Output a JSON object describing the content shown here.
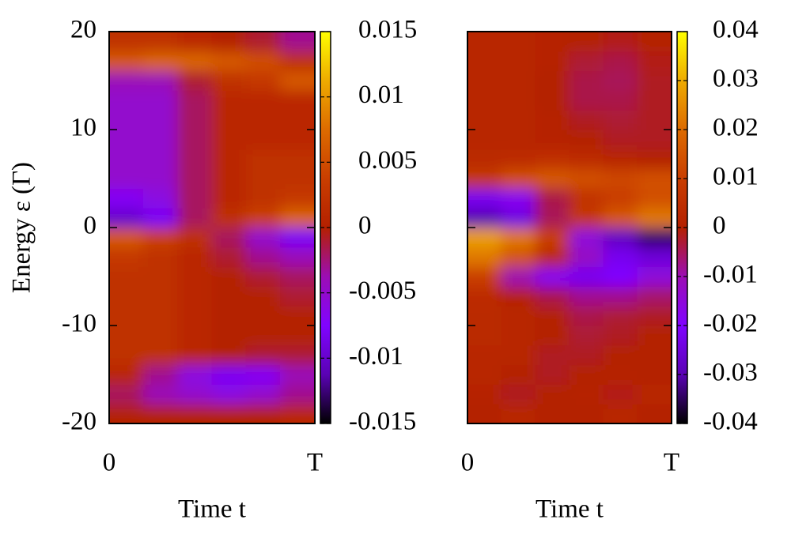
{
  "chart_data": [
    {
      "type": "heatmap",
      "xlabel": "Time t",
      "ylabel": "Energy ε (Γ)",
      "xlim": [
        0,
        1
      ],
      "xticks": [
        0,
        {
          "value": 1,
          "label": "T"
        }
      ],
      "ylim": [
        -20,
        20
      ],
      "yticks": [
        -20,
        -10,
        0,
        10,
        20
      ],
      "x": [
        0.0833,
        0.25,
        0.4167,
        0.5833,
        0.75,
        0.9167
      ],
      "y": [
        -19,
        -17,
        -15,
        -13,
        -11,
        -9,
        -7,
        -5,
        -3,
        -1,
        1,
        3,
        5,
        7,
        9,
        11,
        13,
        15,
        17,
        19
      ],
      "z": [
        [
          0,
          0,
          0,
          0,
          0,
          0.001
        ],
        [
          -0.002,
          -0.004,
          -0.005,
          -0.006,
          -0.005,
          -0.003
        ],
        [
          0.001,
          -0.003,
          -0.006,
          -0.008,
          -0.007,
          -0.004
        ],
        [
          0.002,
          0.002,
          0.001,
          0,
          -0.001,
          -0.001
        ],
        [
          0.002,
          0.002,
          0.001,
          0,
          0,
          0
        ],
        [
          0.002,
          0.002,
          0.001,
          0,
          0,
          0
        ],
        [
          0.002,
          0.002,
          0.001,
          0,
          0,
          -0.001
        ],
        [
          0.002,
          0.002,
          0.001,
          0,
          -0.001,
          -0.002
        ],
        [
          0.003,
          0.002,
          0.001,
          -0.001,
          -0.003,
          -0.004
        ],
        [
          0.006,
          0.004,
          0.002,
          -0.002,
          -0.005,
          -0.008
        ],
        [
          -0.01,
          -0.008,
          -0.002,
          0.002,
          0.004,
          0.007
        ],
        [
          -0.007,
          -0.006,
          -0.002,
          0.001,
          0.002,
          0.003
        ],
        [
          -0.005,
          -0.005,
          -0.002,
          0.001,
          0.002,
          0.002
        ],
        [
          -0.005,
          -0.005,
          -0.002,
          0.001,
          0.002,
          0.002
        ],
        [
          -0.005,
          -0.005,
          -0.002,
          0.001,
          0.001,
          0.001
        ],
        [
          -0.005,
          -0.005,
          -0.002,
          0.001,
          0.001,
          0.001
        ],
        [
          -0.005,
          -0.005,
          -0.002,
          0.001,
          0.001,
          0.001
        ],
        [
          -0.004,
          -0.004,
          -0.001,
          0.002,
          0.003,
          0.006
        ],
        [
          0.006,
          0.007,
          0.007,
          0.006,
          0.005,
          0.002
        ],
        [
          0.002,
          0.002,
          0.001,
          0,
          -0.001,
          -0.003
        ]
      ],
      "clim": [
        -0.015,
        0.015
      ],
      "cticks": [
        -0.015,
        -0.01,
        -0.005,
        0,
        0.005,
        0.01,
        0.015
      ],
      "colormap": [
        "#000000",
        "#5a02b4",
        "#8004ff",
        "#9c0db4",
        "#b42000",
        "#c93e00",
        "#dd6b00",
        "#eeab00",
        "#ffff00"
      ]
    },
    {
      "type": "heatmap",
      "xlabel": "Time t",
      "xlim": [
        0,
        1
      ],
      "xticks": [
        0,
        {
          "value": 1,
          "label": "T"
        }
      ],
      "ylim": [
        -20,
        20
      ],
      "yticks": [
        -20,
        -10,
        0,
        10,
        20
      ],
      "x": [
        0.0833,
        0.25,
        0.4167,
        0.5833,
        0.75,
        0.9167
      ],
      "y": [
        -19,
        -17,
        -15,
        -13,
        -11,
        -9,
        -7,
        -5,
        -3,
        -1,
        1,
        3,
        5,
        7,
        9,
        11,
        13,
        15,
        17,
        19
      ],
      "z": [
        [
          0,
          0.002,
          0,
          0,
          0.002,
          0
        ],
        [
          0.001,
          -0.002,
          0,
          0.001,
          -0.001,
          0.002
        ],
        [
          0.002,
          0,
          -0.002,
          0,
          0.001,
          0
        ],
        [
          0.002,
          0.002,
          -0.002,
          -0.002,
          0,
          0
        ],
        [
          0.003,
          0.002,
          0,
          -0.003,
          -0.002,
          0
        ],
        [
          0.003,
          0.002,
          0,
          -0.004,
          -0.003,
          -0.002
        ],
        [
          0.004,
          0.001,
          -0.004,
          -0.008,
          -0.008,
          -0.006
        ],
        [
          0.01,
          -0.01,
          -0.018,
          -0.022,
          -0.02,
          -0.015
        ],
        [
          0.022,
          0.015,
          0.004,
          -0.012,
          -0.022,
          -0.025
        ],
        [
          0.028,
          0.022,
          0.01,
          -0.015,
          -0.028,
          -0.034
        ],
        [
          -0.03,
          -0.024,
          -0.005,
          0.008,
          0.016,
          0.022
        ],
        [
          -0.022,
          -0.018,
          -0.004,
          0.006,
          0.01,
          0.014
        ],
        [
          0.008,
          0.014,
          0.016,
          0.014,
          0.012,
          0.014
        ],
        [
          0.003,
          0.004,
          0.005,
          0.004,
          0.002,
          0
        ],
        [
          0.002,
          0.002,
          0.001,
          0,
          -0.002,
          -0.002
        ],
        [
          0.002,
          0.002,
          0.001,
          -0.002,
          -0.003,
          -0.002
        ],
        [
          0.002,
          0.002,
          0,
          -0.004,
          -0.004,
          -0.002
        ],
        [
          0.002,
          0.002,
          0,
          -0.004,
          -0.005,
          -0.002
        ],
        [
          0.002,
          0.002,
          0.001,
          -0.003,
          -0.004,
          -0.001
        ],
        [
          0.002,
          0.002,
          0.001,
          0,
          -0.001,
          0
        ]
      ],
      "clim": [
        -0.04,
        0.04
      ],
      "cticks": [
        -0.04,
        -0.03,
        -0.02,
        -0.01,
        0,
        0.01,
        0.02,
        0.03,
        0.04
      ],
      "colormap": [
        "#000000",
        "#5a02b4",
        "#8004ff",
        "#9c0db4",
        "#b42000",
        "#c93e00",
        "#dd6b00",
        "#eeab00",
        "#ffff00"
      ]
    }
  ]
}
